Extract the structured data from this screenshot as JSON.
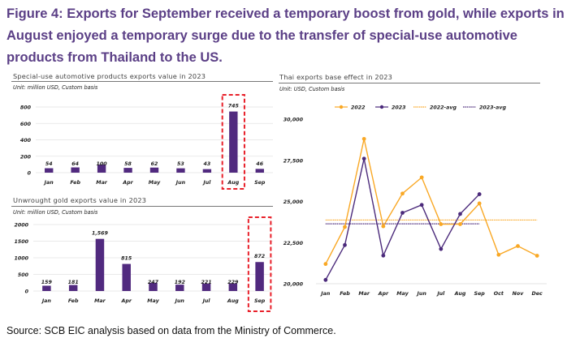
{
  "figure": {
    "title": "Figure 4: Exports for September received a temporary boost from gold, while exports in August enjoyed a temporary surge due to the transfer of special-use automotive products from Thailand to the US.",
    "source": "Source: SCB EIC analysis based on data from the Ministry of Commerce."
  },
  "colors": {
    "bar": "#512a7f",
    "line_2022": "#f9a825",
    "line_2023": "#4b2a7b",
    "highlight_box": "#e8202a",
    "title": "#5b3f86",
    "grid": "#e3e3e3"
  },
  "chart_data": [
    {
      "id": "auto",
      "type": "bar",
      "title": "Special-use automotive products exports value in 2023",
      "unit": "Unit: million USD, Custom basis",
      "categories": [
        "Jan",
        "Feb",
        "Mar",
        "Apr",
        "May",
        "Jun",
        "Jul",
        "Aug",
        "Sep"
      ],
      "values": [
        54,
        64,
        100,
        58,
        62,
        53,
        43,
        745,
        46
      ],
      "data_labels": [
        "54",
        "64",
        "100",
        "58",
        "62",
        "53",
        "43",
        "745",
        "46"
      ],
      "yticks": [
        "0",
        "200",
        "400",
        "600",
        "800"
      ],
      "ylim": [
        0,
        800
      ],
      "grid": true,
      "highlight_category": "Aug"
    },
    {
      "id": "gold",
      "type": "bar",
      "title": "Unwrought gold exports value in 2023",
      "unit": "Unit: million USD, Custom basis",
      "categories": [
        "Jan",
        "Feb",
        "Mar",
        "Apr",
        "May",
        "Jun",
        "Jul",
        "Aug",
        "Sep"
      ],
      "values": [
        159,
        181,
        1569,
        815,
        247,
        192,
        221,
        229,
        872
      ],
      "data_labels": [
        "159",
        "181",
        "1,569",
        "815",
        "247",
        "192",
        "221",
        "229",
        "872"
      ],
      "yticks": [
        "0",
        "500",
        "1000",
        "1500",
        "2000"
      ],
      "ylim": [
        0,
        2000
      ],
      "grid": true,
      "highlight_category": "Sep"
    },
    {
      "id": "base",
      "type": "line",
      "title": "Thai exports base effect in 2023",
      "unit": "Unit: USD, Custom basis",
      "categories": [
        "Jan",
        "Feb",
        "Mar",
        "Apr",
        "May",
        "Jun",
        "Jul",
        "Aug",
        "Sep",
        "Oct",
        "Nov",
        "Dec"
      ],
      "yticks": [
        "20,000",
        "22,500",
        "25,000",
        "27,500",
        "30,000"
      ],
      "ylim": [
        20000,
        30000
      ],
      "legend_position": "top-center",
      "series": [
        {
          "name": "2022",
          "values": [
            21200,
            23450,
            28800,
            23490,
            25480,
            26460,
            23620,
            23620,
            24880,
            21760,
            22290,
            21700
          ]
        },
        {
          "name": "2023",
          "values": [
            20230,
            22350,
            27600,
            21710,
            24310,
            24790,
            22110,
            24240,
            25440
          ]
        },
        {
          "name": "2022-avg",
          "value": 23870,
          "span_months": 12
        },
        {
          "name": "2023-avg",
          "value": 23640,
          "span_months": 9
        }
      ]
    }
  ]
}
